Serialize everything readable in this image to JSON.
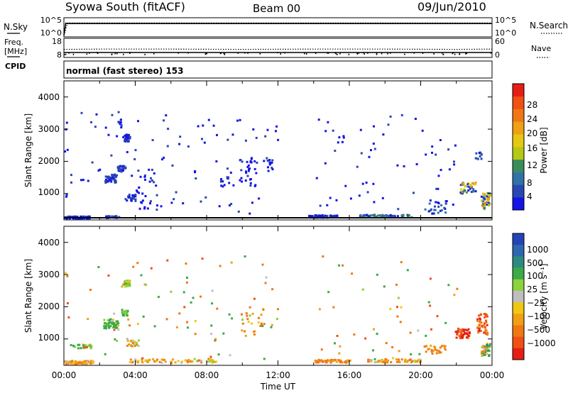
{
  "header": {
    "station": "Syowa South (fitACF)",
    "beam": "Beam 00",
    "date": "09/Jun/2010"
  },
  "noise_panel": {
    "left_label": "N.Sky",
    "right_label": "N.Search",
    "left_ticks": [
      "10^5",
      "10^0"
    ],
    "right_ticks": [
      "10^5",
      "10^0"
    ]
  },
  "freq_panel": {
    "left_label_1": "Freq.",
    "left_label_2": "[MHz]",
    "left_label_3": "CPID",
    "right_label": "Nave",
    "left_ticks": [
      "18",
      "8"
    ],
    "right_ticks": [
      "60",
      "0"
    ]
  },
  "cpid_text": "normal (fast stereo) 153",
  "x_axis": {
    "label": "Time UT",
    "ticks": [
      "00:00",
      "04:00",
      "08:00",
      "12:00",
      "16:00",
      "20:00",
      "00:00"
    ]
  },
  "power_panel": {
    "ylabel": "Slant Range [km]",
    "yticks": [
      "1000",
      "2000",
      "3000",
      "4000"
    ]
  },
  "velocity_panel": {
    "ylabel": "Slant Range [km]",
    "yticks": [
      "1000",
      "2000",
      "3000",
      "4000"
    ]
  },
  "colorbars": {
    "power": {
      "label": "Power [dB]",
      "ticks": [
        "4",
        "8",
        "12",
        "16",
        "20",
        "24",
        "28"
      ],
      "colors": [
        "#1414e6",
        "#2a46b4",
        "#2f72a8",
        "#3c8c5a",
        "#b4c814",
        "#e6c814",
        "#f0a014",
        "#f07814",
        "#f05014",
        "#e61e14"
      ]
    },
    "velocity": {
      "label": "Velocity [m s⁻¹]",
      "ticks": [
        "1000",
        "500",
        "100",
        "25",
        "−25",
        "−100",
        "−500",
        "−1000"
      ],
      "colors": [
        "#2244b8",
        "#2f66b0",
        "#2e8a80",
        "#3caa46",
        "#8cd23c",
        "#bebebe",
        "#f0c814",
        "#f0a014",
        "#f07814",
        "#f05014",
        "#e61e14"
      ]
    }
  },
  "chart_data": [
    {
      "type": "line",
      "title": "Syowa South (fitACF)",
      "xlabel": "",
      "ylabel": "N.Sky",
      "xlim": [
        0,
        24
      ],
      "ylim_log10": [
        0,
        5
      ],
      "series": [
        {
          "name": "N.Sky",
          "style": "solid",
          "x": [
            0,
            0.1,
            0.2,
            24
          ],
          "y_log10": [
            0.2,
            3.8,
            3.7,
            3.7
          ]
        },
        {
          "name": "N.Search",
          "style": "dotted",
          "x": [
            0,
            0.2,
            24
          ],
          "y_log10": [
            0.2,
            3.9,
            3.9
          ]
        }
      ]
    },
    {
      "type": "line",
      "xlabel": "",
      "ylabel": "Freq. [MHz]",
      "xlim": [
        0,
        24
      ],
      "ylim": [
        8,
        18
      ],
      "series": [
        {
          "name": "Freq.",
          "style": "solid",
          "x": [
            0,
            24
          ],
          "y": [
            10.5,
            10.5
          ]
        },
        {
          "name": "Nave",
          "style": "dotted",
          "x": [
            0,
            2,
            6,
            10,
            14,
            18,
            22,
            24
          ],
          "y": [
            26,
            27,
            27,
            26,
            27,
            27,
            26,
            27
          ]
        }
      ]
    },
    {
      "type": "heatmap",
      "title": "normal (fast stereo) 153",
      "xlabel": "",
      "ylabel": "Slant Range [km]",
      "xlim": [
        0,
        24
      ],
      "ylim": [
        180,
        4500
      ],
      "colorbar": "Power [dB]",
      "clim": [
        0,
        30
      ],
      "blobs": [
        {
          "t": 0.6,
          "r": 280,
          "dt": 1.6,
          "dr": 80,
          "n": 60,
          "v": [
            1,
            4
          ]
        },
        {
          "t": 2.7,
          "r": 300,
          "dt": 0.8,
          "dr": 60,
          "n": 20,
          "v": [
            1,
            4
          ]
        },
        {
          "t": 2.6,
          "r": 1500,
          "dt": 0.7,
          "dr": 260,
          "n": 45,
          "v": [
            1,
            6
          ]
        },
        {
          "t": 3.2,
          "r": 1800,
          "dt": 0.5,
          "dr": 180,
          "n": 25,
          "v": [
            1,
            6
          ]
        },
        {
          "t": 3.5,
          "r": 2750,
          "dt": 0.3,
          "dr": 220,
          "n": 30,
          "v": [
            1,
            4
          ]
        },
        {
          "t": 3.1,
          "r": 3250,
          "dt": 0.2,
          "dr": 200,
          "n": 8,
          "v": [
            1,
            4
          ]
        },
        {
          "t": 3.7,
          "r": 900,
          "dt": 0.6,
          "dr": 200,
          "n": 20,
          "v": [
            1,
            4
          ]
        },
        {
          "t": 4.6,
          "r": 1200,
          "dt": 1.3,
          "dr": 1300,
          "n": 30,
          "v": [
            1,
            4
          ]
        },
        {
          "t": 9.0,
          "r": 1400,
          "dt": 0.5,
          "dr": 300,
          "n": 12,
          "v": [
            1,
            4
          ]
        },
        {
          "t": 10.3,
          "r": 1700,
          "dt": 1.0,
          "dr": 900,
          "n": 30,
          "v": [
            1,
            4
          ]
        },
        {
          "t": 11.5,
          "r": 1900,
          "dt": 0.4,
          "dr": 400,
          "n": 10,
          "v": [
            1,
            4
          ]
        },
        {
          "t": 14.5,
          "r": 320,
          "dt": 1.6,
          "dr": 80,
          "n": 45,
          "v": [
            1,
            4
          ]
        },
        {
          "t": 18.0,
          "r": 330,
          "dt": 3.0,
          "dr": 80,
          "n": 50,
          "v": [
            1,
            12
          ]
        },
        {
          "t": 20.8,
          "r": 600,
          "dt": 1.2,
          "dr": 400,
          "n": 25,
          "v": [
            1,
            8
          ]
        },
        {
          "t": 22.6,
          "r": 1200,
          "dt": 0.9,
          "dr": 350,
          "n": 40,
          "v": [
            1,
            22
          ]
        },
        {
          "t": 23.6,
          "r": 800,
          "dt": 0.5,
          "dr": 500,
          "n": 45,
          "v": [
            1,
            24
          ]
        },
        {
          "t": 23.2,
          "r": 2200,
          "dt": 0.4,
          "dr": 250,
          "n": 12,
          "v": [
            1,
            8
          ]
        }
      ],
      "scatter": [
        {
          "t0": 0,
          "t1": 12,
          "r0": 400,
          "r1": 3600,
          "n": 90,
          "v": [
            1,
            4
          ]
        },
        {
          "t0": 14,
          "t1": 22,
          "r0": 400,
          "r1": 3600,
          "n": 60,
          "v": [
            1,
            4
          ]
        }
      ]
    },
    {
      "type": "heatmap",
      "xlabel": "Time UT",
      "ylabel": "Slant Range [km]",
      "xlim": [
        0,
        24
      ],
      "ylim": [
        180,
        4500
      ],
      "colorbar": "Velocity [m s⁻¹]",
      "clim": [
        -1200,
        1200
      ],
      "blobs": [
        {
          "t": 0.7,
          "r": 300,
          "dt": 1.8,
          "dr": 100,
          "n": 70,
          "v": [
            -200,
            60
          ]
        },
        {
          "t": 0.9,
          "r": 800,
          "dt": 1.2,
          "dr": 120,
          "n": 25,
          "v": [
            0,
            200
          ]
        },
        {
          "t": 2.6,
          "r": 1500,
          "dt": 0.8,
          "dr": 300,
          "n": 45,
          "v": [
            0,
            300
          ]
        },
        {
          "t": 3.4,
          "r": 1850,
          "dt": 0.4,
          "dr": 200,
          "n": 25,
          "v": [
            50,
            200
          ]
        },
        {
          "t": 3.5,
          "r": 2750,
          "dt": 0.3,
          "dr": 200,
          "n": 25,
          "v": [
            0,
            150
          ]
        },
        {
          "t": 3.8,
          "r": 900,
          "dt": 0.7,
          "dr": 200,
          "n": 20,
          "v": [
            -150,
            100
          ]
        },
        {
          "t": 6.0,
          "r": 350,
          "dt": 5.0,
          "dr": 120,
          "n": 70,
          "v": [
            -150,
            80
          ]
        },
        {
          "t": 10.5,
          "r": 1600,
          "dt": 1.5,
          "dr": 1000,
          "n": 25,
          "v": [
            -300,
            100
          ]
        },
        {
          "t": 15.0,
          "r": 340,
          "dt": 2.0,
          "dr": 90,
          "n": 50,
          "v": [
            -250,
            -30
          ]
        },
        {
          "t": 18.5,
          "r": 350,
          "dt": 3.0,
          "dr": 100,
          "n": 55,
          "v": [
            -300,
            80
          ]
        },
        {
          "t": 20.8,
          "r": 700,
          "dt": 1.2,
          "dr": 300,
          "n": 25,
          "v": [
            -300,
            -30
          ]
        },
        {
          "t": 22.3,
          "r": 1200,
          "dt": 0.8,
          "dr": 300,
          "n": 45,
          "v": [
            -1000,
            -150
          ]
        },
        {
          "t": 23.4,
          "r": 1500,
          "dt": 0.6,
          "dr": 700,
          "n": 45,
          "v": [
            -600,
            -50
          ]
        },
        {
          "t": 23.6,
          "r": 700,
          "dt": 0.5,
          "dr": 400,
          "n": 40,
          "v": [
            -200,
            400
          ]
        }
      ],
      "scatter": [
        {
          "t0": 0,
          "t1": 12,
          "r0": 400,
          "r1": 3600,
          "n": 80,
          "v": [
            -400,
            300
          ]
        },
        {
          "t0": 14,
          "t1": 22,
          "r0": 400,
          "r1": 3600,
          "n": 50,
          "v": [
            -400,
            300
          ]
        }
      ]
    }
  ]
}
